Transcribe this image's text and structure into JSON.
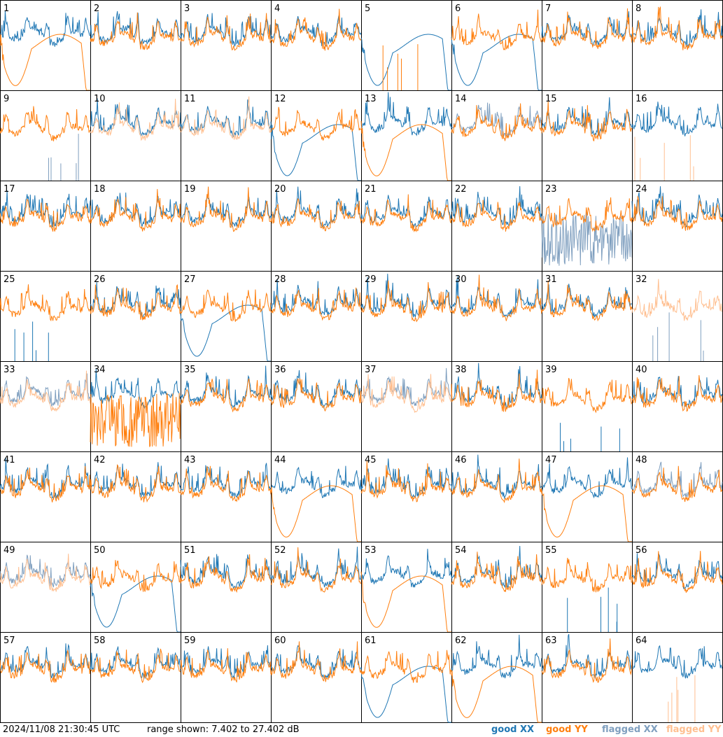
{
  "colors": {
    "good_xx": "#1f77b4",
    "good_yy": "#ff7f0e",
    "flagged_xx": "#7f9fbf",
    "flagged_yy": "#ffbf90"
  },
  "footer": {
    "timestamp": "2024/11/08 21:30:45 UTC",
    "range_text": "range shown: 7.402 to 27.402 dB"
  },
  "legend": {
    "good_xx": "good XX",
    "good_yy": "good YY",
    "flagged_xx": "flagged XX",
    "flagged_yy": "flagged YY"
  },
  "chart_data": {
    "type": "line",
    "layout": "small-multiples 8x8",
    "ylim": [
      7.402,
      27.402
    ],
    "yunit": "dB",
    "panels": [
      {
        "label": "1",
        "xx": "good",
        "yy": "good",
        "xx_shape": "ripple",
        "yy_shape": "dip"
      },
      {
        "label": "2",
        "xx": "good",
        "yy": "good",
        "xx_shape": "ripple",
        "yy_shape": "ripple"
      },
      {
        "label": "3",
        "xx": "good",
        "yy": "good",
        "xx_shape": "ripple",
        "yy_shape": "ripple"
      },
      {
        "label": "4",
        "xx": "good",
        "yy": "good",
        "xx_shape": "ripple",
        "yy_shape": "ripple"
      },
      {
        "label": "5",
        "xx": "good",
        "yy": "good",
        "xx_shape": "dip",
        "yy_shape": "spiky"
      },
      {
        "label": "6",
        "xx": "good",
        "yy": "good",
        "xx_shape": "dip",
        "yy_shape": "ripple"
      },
      {
        "label": "7",
        "xx": "good",
        "yy": "good",
        "xx_shape": "ripple",
        "yy_shape": "ripple"
      },
      {
        "label": "8",
        "xx": "good",
        "yy": "good",
        "xx_shape": "ripple",
        "yy_shape": "ripple"
      },
      {
        "label": "9",
        "xx": "flagged",
        "yy": "good",
        "xx_shape": "spiky",
        "yy_shape": "ripple"
      },
      {
        "label": "10",
        "xx": "good",
        "yy": "flagged",
        "xx_shape": "ripple",
        "yy_shape": "ripple"
      },
      {
        "label": "11",
        "xx": "good",
        "yy": "flagged",
        "xx_shape": "ripple",
        "yy_shape": "ripple"
      },
      {
        "label": "12",
        "xx": "good",
        "yy": "good",
        "xx_shape": "dip",
        "yy_shape": "ripple"
      },
      {
        "label": "13",
        "xx": "good",
        "yy": "good",
        "xx_shape": "ripple",
        "yy_shape": "dip"
      },
      {
        "label": "14",
        "xx": "flagged",
        "yy": "good",
        "xx_shape": "ripple",
        "yy_shape": "ripple"
      },
      {
        "label": "15",
        "xx": "good",
        "yy": "good",
        "xx_shape": "ripple",
        "yy_shape": "ripple"
      },
      {
        "label": "16",
        "xx": "good",
        "yy": "flagged",
        "xx_shape": "ripple",
        "yy_shape": "spiky"
      },
      {
        "label": "17",
        "xx": "good",
        "yy": "good",
        "xx_shape": "ripple",
        "yy_shape": "ripple"
      },
      {
        "label": "18",
        "xx": "good",
        "yy": "good",
        "xx_shape": "ripple",
        "yy_shape": "ripple"
      },
      {
        "label": "19",
        "xx": "good",
        "yy": "good",
        "xx_shape": "ripple",
        "yy_shape": "ripple"
      },
      {
        "label": "20",
        "xx": "good",
        "yy": "good",
        "xx_shape": "ripple",
        "yy_shape": "ripple"
      },
      {
        "label": "21",
        "xx": "good",
        "yy": "good",
        "xx_shape": "ripple",
        "yy_shape": "ripple"
      },
      {
        "label": "22",
        "xx": "good",
        "yy": "good",
        "xx_shape": "ripple",
        "yy_shape": "ripple"
      },
      {
        "label": "23",
        "xx": "flagged",
        "yy": "good",
        "xx_shape": "noisy",
        "yy_shape": "ripple"
      },
      {
        "label": "24",
        "xx": "good",
        "yy": "good",
        "xx_shape": "ripple",
        "yy_shape": "ripple"
      },
      {
        "label": "25",
        "xx": "good",
        "yy": "good",
        "xx_shape": "spiky",
        "yy_shape": "ripple"
      },
      {
        "label": "26",
        "xx": "good",
        "yy": "good",
        "xx_shape": "ripple",
        "yy_shape": "ripple"
      },
      {
        "label": "27",
        "xx": "good",
        "yy": "good",
        "xx_shape": "dip",
        "yy_shape": "ripple"
      },
      {
        "label": "28",
        "xx": "good",
        "yy": "good",
        "xx_shape": "ripple",
        "yy_shape": "ripple"
      },
      {
        "label": "29",
        "xx": "good",
        "yy": "good",
        "xx_shape": "ripple",
        "yy_shape": "ripple"
      },
      {
        "label": "30",
        "xx": "good",
        "yy": "good",
        "xx_shape": "ripple",
        "yy_shape": "ripple"
      },
      {
        "label": "31",
        "xx": "good",
        "yy": "good",
        "xx_shape": "ripple",
        "yy_shape": "ripple"
      },
      {
        "label": "32",
        "xx": "flagged",
        "yy": "flagged",
        "xx_shape": "spiky",
        "yy_shape": "ripple"
      },
      {
        "label": "33",
        "xx": "flagged",
        "yy": "flagged",
        "xx_shape": "ripple",
        "yy_shape": "ripple"
      },
      {
        "label": "34",
        "xx": "good",
        "yy": "good",
        "xx_shape": "ripple",
        "yy_shape": "noisy"
      },
      {
        "label": "35",
        "xx": "good",
        "yy": "good",
        "xx_shape": "ripple",
        "yy_shape": "ripple"
      },
      {
        "label": "36",
        "xx": "good",
        "yy": "good",
        "xx_shape": "ripple",
        "yy_shape": "ripple"
      },
      {
        "label": "37",
        "xx": "flagged",
        "yy": "flagged",
        "xx_shape": "ripple",
        "yy_shape": "ripple"
      },
      {
        "label": "38",
        "xx": "good",
        "yy": "good",
        "xx_shape": "ripple",
        "yy_shape": "ripple"
      },
      {
        "label": "39",
        "xx": "good",
        "yy": "good",
        "xx_shape": "spiky",
        "yy_shape": "ripple"
      },
      {
        "label": "40",
        "xx": "good",
        "yy": "good",
        "xx_shape": "ripple",
        "yy_shape": "ripple"
      },
      {
        "label": "41",
        "xx": "good",
        "yy": "good",
        "xx_shape": "ripple",
        "yy_shape": "ripple"
      },
      {
        "label": "42",
        "xx": "good",
        "yy": "good",
        "xx_shape": "ripple",
        "yy_shape": "ripple"
      },
      {
        "label": "43",
        "xx": "good",
        "yy": "good",
        "xx_shape": "ripple",
        "yy_shape": "ripple"
      },
      {
        "label": "44",
        "xx": "good",
        "yy": "good",
        "xx_shape": "ripple",
        "yy_shape": "dip"
      },
      {
        "label": "45",
        "xx": "good",
        "yy": "good",
        "xx_shape": "ripple",
        "yy_shape": "ripple"
      },
      {
        "label": "46",
        "xx": "good",
        "yy": "good",
        "xx_shape": "ripple",
        "yy_shape": "ripple"
      },
      {
        "label": "47",
        "xx": "good",
        "yy": "good",
        "xx_shape": "ripple",
        "yy_shape": "dip"
      },
      {
        "label": "48",
        "xx": "flagged",
        "yy": "good",
        "xx_shape": "ripple",
        "yy_shape": "ripple"
      },
      {
        "label": "49",
        "xx": "flagged",
        "yy": "flagged",
        "xx_shape": "ripple",
        "yy_shape": "ripple"
      },
      {
        "label": "50",
        "xx": "good",
        "yy": "good",
        "xx_shape": "dip",
        "yy_shape": "ripple"
      },
      {
        "label": "51",
        "xx": "good",
        "yy": "good",
        "xx_shape": "ripple",
        "yy_shape": "ripple"
      },
      {
        "label": "52",
        "xx": "good",
        "yy": "good",
        "xx_shape": "ripple",
        "yy_shape": "ripple"
      },
      {
        "label": "53",
        "xx": "good",
        "yy": "good",
        "xx_shape": "ripple",
        "yy_shape": "dip"
      },
      {
        "label": "54",
        "xx": "good",
        "yy": "good",
        "xx_shape": "ripple",
        "yy_shape": "ripple"
      },
      {
        "label": "55",
        "xx": "good",
        "yy": "good",
        "xx_shape": "spiky",
        "yy_shape": "ripple"
      },
      {
        "label": "56",
        "xx": "good",
        "yy": "good",
        "xx_shape": "ripple",
        "yy_shape": "ripple"
      },
      {
        "label": "57",
        "xx": "good",
        "yy": "good",
        "xx_shape": "ripple",
        "yy_shape": "ripple"
      },
      {
        "label": "58",
        "xx": "good",
        "yy": "good",
        "xx_shape": "ripple",
        "yy_shape": "ripple"
      },
      {
        "label": "59",
        "xx": "good",
        "yy": "good",
        "xx_shape": "ripple",
        "yy_shape": "ripple"
      },
      {
        "label": "60",
        "xx": "good",
        "yy": "good",
        "xx_shape": "ripple",
        "yy_shape": "ripple"
      },
      {
        "label": "61",
        "xx": "good",
        "yy": "good",
        "xx_shape": "dip",
        "yy_shape": "ripple"
      },
      {
        "label": "62",
        "xx": "good",
        "yy": "good",
        "xx_shape": "ripple",
        "yy_shape": "dip"
      },
      {
        "label": "63",
        "xx": "good",
        "yy": "good",
        "xx_shape": "ripple",
        "yy_shape": "ripple"
      },
      {
        "label": "64",
        "xx": "good",
        "yy": "flagged",
        "xx_shape": "ripple",
        "yy_shape": "spiky"
      }
    ]
  }
}
